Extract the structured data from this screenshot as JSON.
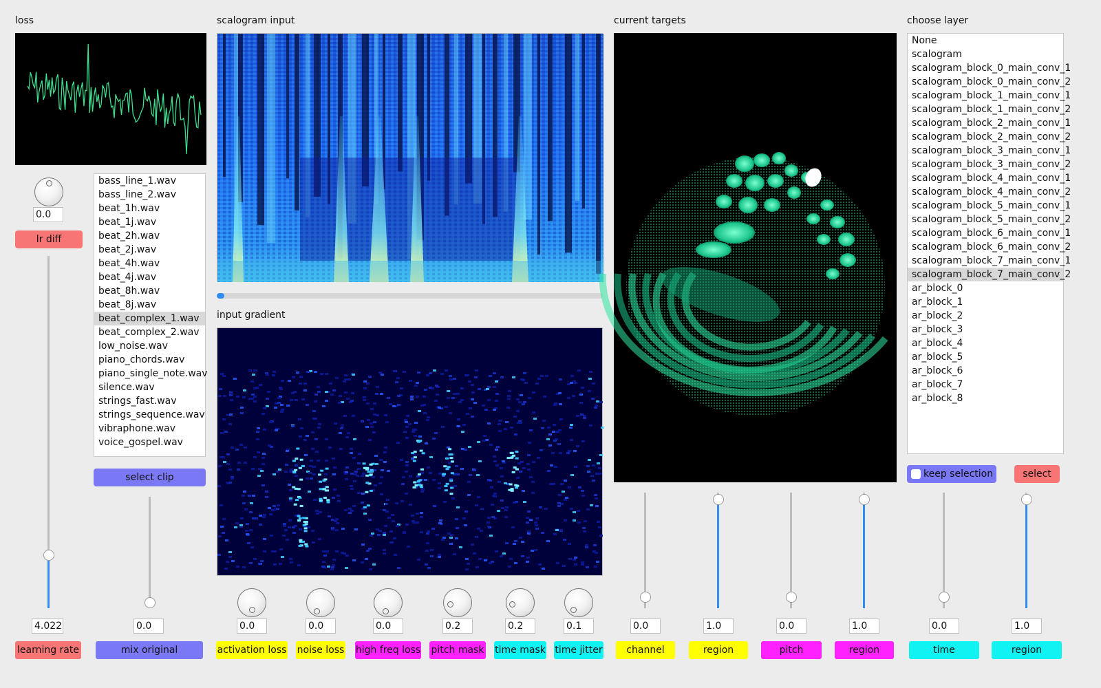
{
  "loss": {
    "title": "loss",
    "value": "0.0"
  },
  "lr_diff": "lr diff",
  "learning_rate": {
    "value": "4.022",
    "label": "learning rate",
    "fraction": 0.15
  },
  "clips": {
    "items": [
      "bass_line_1.wav",
      "bass_line_2.wav",
      "beat_1h.wav",
      "beat_1j.wav",
      "beat_2h.wav",
      "beat_2j.wav",
      "beat_4h.wav",
      "beat_4j.wav",
      "beat_8h.wav",
      "beat_8j.wav",
      "beat_complex_1.wav",
      "beat_complex_2.wav",
      "low_noise.wav",
      "piano_chords.wav",
      "piano_single_note.wav",
      "silence.wav",
      "strings_fast.wav",
      "strings_sequence.wav",
      "vibraphone.wav",
      "voice_gospel.wav"
    ],
    "selected": "beat_complex_1.wav",
    "select_button": "select clip"
  },
  "mix_original": {
    "value": "0.0",
    "label": "mix original",
    "fraction": 0.0
  },
  "scalogram": {
    "title": "scalogram input",
    "progress": 0.02
  },
  "gradient": {
    "title": "input gradient"
  },
  "knobs": [
    {
      "value": "0.0",
      "label": "activation loss",
      "color": "#ffff00"
    },
    {
      "value": "0.0",
      "label": "noise loss",
      "color": "#ffff00"
    },
    {
      "value": "0.0",
      "label": "high freq loss",
      "color": "#ff22ff"
    },
    {
      "value": "0.2",
      "label": "pitch mask",
      "color": "#ff22ff"
    },
    {
      "value": "0.2",
      "label": "time mask",
      "color": "#11f3f3"
    },
    {
      "value": "0.1",
      "label": "time jitter",
      "color": "#11f3f3"
    }
  ],
  "targets": {
    "title": "current targets"
  },
  "target_sliders": [
    {
      "value": "0.0",
      "label": "channel",
      "color": "#ffff00",
      "fraction": 0.0
    },
    {
      "value": "1.0",
      "label": "region",
      "color": "#ffff00",
      "fraction": 1.0
    },
    {
      "value": "0.0",
      "label": "pitch",
      "color": "#ff22ff",
      "fraction": 0.0
    },
    {
      "value": "1.0",
      "label": "region",
      "color": "#ff22ff",
      "fraction": 1.0
    },
    {
      "value": "0.0",
      "label": "time",
      "color": "#11f3f3",
      "fraction": 0.0
    },
    {
      "value": "1.0",
      "label": "region",
      "color": "#11f3f3",
      "fraction": 1.0
    }
  ],
  "layers": {
    "title": "choose layer",
    "items": [
      "None",
      "scalogram",
      "scalogram_block_0_main_conv_1",
      "scalogram_block_0_main_conv_2",
      "scalogram_block_1_main_conv_1",
      "scalogram_block_1_main_conv_2",
      "scalogram_block_2_main_conv_1",
      "scalogram_block_2_main_conv_2",
      "scalogram_block_3_main_conv_1",
      "scalogram_block_3_main_conv_2",
      "scalogram_block_4_main_conv_1",
      "scalogram_block_4_main_conv_2",
      "scalogram_block_5_main_conv_1",
      "scalogram_block_5_main_conv_2",
      "scalogram_block_6_main_conv_1",
      "scalogram_block_6_main_conv_2",
      "scalogram_block_7_main_conv_1",
      "scalogram_block_7_main_conv_2",
      "ar_block_0",
      "ar_block_1",
      "ar_block_2",
      "ar_block_3",
      "ar_block_4",
      "ar_block_5",
      "ar_block_6",
      "ar_block_7",
      "ar_block_8"
    ],
    "selected": "scalogram_block_7_main_conv_2",
    "keep_selection": "keep selection",
    "keep_checked": false,
    "select_button": "select"
  },
  "colors": {
    "loss_line": "#3fe08f",
    "slider_fill": "#2f8ef0",
    "red_button": "#f87575",
    "blue_button": "#7a78f5"
  }
}
